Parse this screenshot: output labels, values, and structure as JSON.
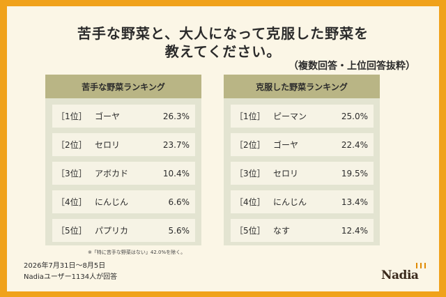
{
  "title_line1": "苦手な野菜と、大人になって克服した野菜を",
  "title_line2": "教えてください。",
  "subtitle": "（複数回答・上位回答抜粋）",
  "note": "※「特に苦手な野菜はない」42.0%を除く。",
  "footer": {
    "period": "2026年7月31日〜8月5日",
    "respondents": "Nadiaユーザー1134人が回答"
  },
  "logo_text": "Nadia",
  "colors": {
    "background": "#f0a21b",
    "panel_header": "#b9b585",
    "panel_body": "#e3e4d1",
    "row": "#f6f3e5"
  },
  "chart_data": [
    {
      "type": "table",
      "title": "苦手な野菜ランキング",
      "rows": [
        {
          "rank": "［1位］",
          "name": "ゴーヤ",
          "value": "26.3%"
        },
        {
          "rank": "［2位］",
          "name": "セロリ",
          "value": "23.7%"
        },
        {
          "rank": "［3位］",
          "name": "アボカド",
          "value": "10.4%"
        },
        {
          "rank": "［4位］",
          "name": "にんじん",
          "value": "6.6%"
        },
        {
          "rank": "［5位］",
          "name": "パプリカ",
          "value": "5.6%"
        }
      ]
    },
    {
      "type": "table",
      "title": "克服した野菜ランキング",
      "rows": [
        {
          "rank": "［1位］",
          "name": "ピーマン",
          "value": "25.0%"
        },
        {
          "rank": "［2位］",
          "name": "ゴーヤ",
          "value": "22.4%"
        },
        {
          "rank": "［3位］",
          "name": "セロリ",
          "value": "19.5%"
        },
        {
          "rank": "［4位］",
          "name": "にんじん",
          "value": "13.4%"
        },
        {
          "rank": "［5位］",
          "name": "なす",
          "value": "12.4%"
        }
      ]
    }
  ]
}
